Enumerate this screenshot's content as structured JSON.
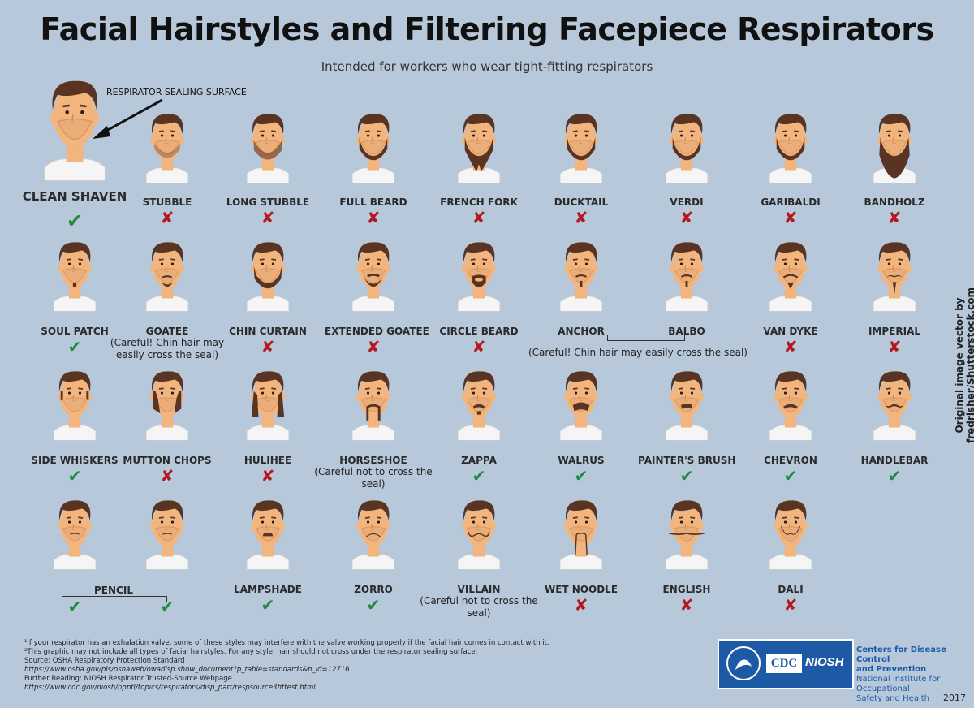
{
  "title": "Facial Hairstyles and Filtering Facepiece Respirators",
  "subtitle": "Intended for workers who wear tight-fitting respirators",
  "sealing_surface_label": "RESPIRATOR SEALING SURFACE",
  "clean_shaven": {
    "label": "CLEAN SHAVEN",
    "ok": true
  },
  "credit": "Original image vector by fredrisher/Shutterstock.com",
  "styles": [
    {
      "label": "STUBBLE",
      "ok": false,
      "beard": "stubble"
    },
    {
      "label": "LONG STUBBLE",
      "ok": false,
      "beard": "longstubble"
    },
    {
      "label": "FULL BEARD",
      "ok": false,
      "beard": "full"
    },
    {
      "label": "FRENCH FORK",
      "ok": false,
      "beard": "fork"
    },
    {
      "label": "DUCKTAIL",
      "ok": false,
      "beard": "full"
    },
    {
      "label": "VERDI",
      "ok": false,
      "beard": "full"
    },
    {
      "label": "GARIBALDI",
      "ok": false,
      "beard": "full"
    },
    {
      "label": "BANDHOLZ",
      "ok": false,
      "beard": "long"
    },
    {
      "label": "SOUL PATCH",
      "ok": true,
      "beard": "soul"
    },
    {
      "label": "GOATEE",
      "ok": null,
      "beard": "goatee",
      "note": "(Careful! Chin hair may easily cross the seal)"
    },
    {
      "label": "CHIN CURTAIN",
      "ok": false,
      "beard": "curtain"
    },
    {
      "label": "EXTENDED GOATEE",
      "ok": false,
      "beard": "extgoatee"
    },
    {
      "label": "CIRCLE BEARD",
      "ok": false,
      "beard": "circle"
    },
    {
      "label": "ANCHOR",
      "ok": null,
      "beard": "anchor"
    },
    {
      "label": "BALBO",
      "ok": null,
      "beard": "anchor"
    },
    {
      "label": "VAN DYKE",
      "ok": false,
      "beard": "vandyke"
    },
    {
      "label": "IMPERIAL",
      "ok": false,
      "beard": "imperial"
    },
    {
      "label": "SIDE WHISKERS",
      "ok": true,
      "beard": "side"
    },
    {
      "label": "MUTTON CHOPS",
      "ok": false,
      "beard": "mutton"
    },
    {
      "label": "HULIHEE",
      "ok": false,
      "beard": "hulihee"
    },
    {
      "label": "HORSESHOE",
      "ok": null,
      "beard": "horseshoe",
      "note": "(Careful not to cross the seal)"
    },
    {
      "label": "ZAPPA",
      "ok": true,
      "beard": "zappa"
    },
    {
      "label": "WALRUS",
      "ok": true,
      "beard": "walrus"
    },
    {
      "label": "PAINTER'S BRUSH",
      "ok": true,
      "beard": "painter"
    },
    {
      "label": "CHEVRON",
      "ok": true,
      "beard": "chevron"
    },
    {
      "label": "HANDLEBAR",
      "ok": true,
      "beard": "handlebar"
    },
    {
      "label": "",
      "ok": true,
      "beard": "pencil"
    },
    {
      "label": "",
      "ok": true,
      "beard": "pencil"
    },
    {
      "label": "LAMPSHADE",
      "ok": true,
      "beard": "lampshade"
    },
    {
      "label": "ZORRO",
      "ok": true,
      "beard": "zorro"
    },
    {
      "label": "VILLAIN",
      "ok": null,
      "beard": "villain",
      "note": "(Careful not to cross the seal)"
    },
    {
      "label": "WET NOODLE",
      "ok": false,
      "beard": "noodle"
    },
    {
      "label": "ENGLISH",
      "ok": false,
      "beard": "english"
    },
    {
      "label": "DALI",
      "ok": false,
      "beard": "dali"
    }
  ],
  "pencil_label": "PENCIL",
  "anchor_balbo_note": "(Careful! Chin hair may easily cross the seal)",
  "footnotes": [
    {
      "text": "¹If your respirator has an exhalation valve, some of these styles may interfere with the valve working properly if the facial hair comes in contact with it.",
      "url": false
    },
    {
      "text": "²This graphic may not include all types of facial hairstyles. For any style, hair should not cross under the respirator sealing surface.",
      "url": false
    },
    {
      "text": "Source: OSHA Respiratory Protection Standard",
      "url": false
    },
    {
      "text": "https://www.osha.gov/pls/oshaweb/owadisp.show_document?p_table=standards&p_id=12716",
      "url": true
    },
    {
      "text": "Further Reading: NIOSH Respirator Trusted-Source Webpage",
      "url": false
    },
    {
      "text": "https://www.cdc.gov/niosh/npptl/topics/respirators/disp_part/respsource3fittest.html",
      "url": true
    }
  ],
  "logo": {
    "cdc": "CDC",
    "niosh": "NIOSH"
  },
  "agency": {
    "line1": "Centers for Disease Control",
    "line2": "and Prevention",
    "line3": "National Institute for Occupational",
    "line4": "Safety and Health"
  },
  "year": "2017",
  "marks": {
    "ok": "✔",
    "no": "✘"
  },
  "colors": {
    "background": "#b8c8db",
    "ok": "#1f8a3a",
    "no": "#b3181e",
    "skin": "#f2b57e",
    "hair": "#5a3422",
    "shirt": "#f5f5f5",
    "respirator": "#e8a974",
    "cdc_blue": "#1c5aa6"
  }
}
